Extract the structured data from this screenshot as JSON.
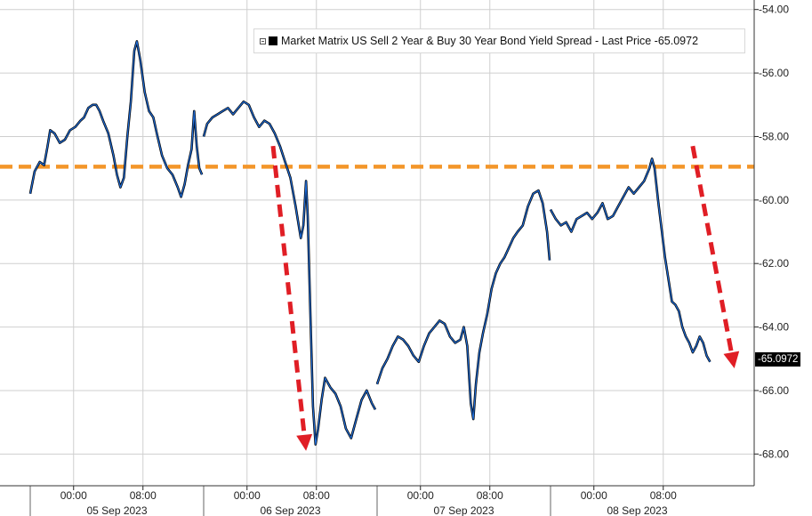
{
  "chart_data": {
    "type": "line",
    "legend": {
      "label": "Market Matrix US Sell 2 Year & Buy 30 Year Bond Yield Spread - Last Price -65.0972",
      "placement": "top-right"
    },
    "last_price_label": "-65.0972",
    "y_axis": {
      "side": "right",
      "ylim": [
        -69,
        -53.5
      ],
      "tick_values": [
        -54,
        -56,
        -58,
        -60,
        -62,
        -64,
        -66,
        -68
      ],
      "tick_labels": [
        "-54.00",
        "-56.00",
        "-58.00",
        "-60.00",
        "-62.00",
        "-64.00",
        "-66.00",
        "-68.00"
      ]
    },
    "x_axis": {
      "xlim": [
        0,
        43.6
      ],
      "hour_ticks": [
        {
          "x": 2.5,
          "label": "00:00"
        },
        {
          "x": 6.5,
          "label": "08:00"
        },
        {
          "x": 12.5,
          "label": "00:00"
        },
        {
          "x": 16.5,
          "label": "08:00"
        },
        {
          "x": 22.5,
          "label": "00:00"
        },
        {
          "x": 26.5,
          "label": "08:00"
        },
        {
          "x": 32.5,
          "label": "00:00"
        },
        {
          "x": 36.5,
          "label": "08:00"
        }
      ],
      "day_separators": [
        0,
        10,
        20,
        30
      ],
      "day_labels": [
        {
          "x": 5,
          "label": "05 Sep 2023"
        },
        {
          "x": 15,
          "label": "06 Sep 2023"
        },
        {
          "x": 25,
          "label": "07 Sep 2023"
        },
        {
          "x": 35,
          "label": "08 Sep 2023"
        }
      ]
    },
    "grid": true,
    "reference_line": {
      "y": -58.95,
      "color": "#f3962a",
      "style": "dashed"
    },
    "arrows": [
      {
        "from": [
          14.0,
          -58.3
        ],
        "to": [
          15.9,
          -67.9
        ],
        "color": "#e01e25"
      },
      {
        "from": [
          38.2,
          -58.3
        ],
        "to": [
          40.6,
          -65.3
        ],
        "color": "#e01e25"
      }
    ],
    "series": [
      {
        "color": "#1e6bd6",
        "segments": [
          [
            [
              0.0,
              -59.8
            ],
            [
              0.25,
              -59.1
            ],
            [
              0.55,
              -58.8
            ],
            [
              0.8,
              -58.9
            ],
            [
              1.0,
              -58.3
            ],
            [
              1.15,
              -57.8
            ],
            [
              1.4,
              -57.9
            ],
            [
              1.7,
              -58.2
            ],
            [
              2.0,
              -58.1
            ],
            [
              2.3,
              -57.8
            ],
            [
              2.6,
              -57.7
            ],
            [
              2.9,
              -57.5
            ],
            [
              3.1,
              -57.4
            ],
            [
              3.35,
              -57.1
            ],
            [
              3.6,
              -57.0
            ],
            [
              3.8,
              -57.0
            ],
            [
              4.0,
              -57.2
            ],
            [
              4.2,
              -57.5
            ],
            [
              4.5,
              -57.9
            ],
            [
              4.8,
              -58.6
            ],
            [
              5.0,
              -59.2
            ],
            [
              5.2,
              -59.6
            ],
            [
              5.4,
              -59.3
            ],
            [
              5.6,
              -58.0
            ],
            [
              5.8,
              -56.9
            ],
            [
              6.0,
              -55.3
            ],
            [
              6.15,
              -55.0
            ],
            [
              6.35,
              -55.6
            ],
            [
              6.6,
              -56.6
            ],
            [
              6.85,
              -57.2
            ],
            [
              7.1,
              -57.4
            ],
            [
              7.3,
              -57.9
            ],
            [
              7.6,
              -58.6
            ],
            [
              7.9,
              -59.0
            ],
            [
              8.2,
              -59.2
            ],
            [
              8.5,
              -59.6
            ],
            [
              8.7,
              -59.9
            ],
            [
              8.9,
              -59.5
            ],
            [
              9.1,
              -58.9
            ],
            [
              9.3,
              -58.4
            ],
            [
              9.45,
              -57.2
            ],
            [
              9.6,
              -58.3
            ],
            [
              9.75,
              -59.0
            ],
            [
              9.9,
              -59.2
            ]
          ],
          [
            [
              10.0,
              -58.0
            ],
            [
              10.2,
              -57.6
            ],
            [
              10.5,
              -57.4
            ],
            [
              10.8,
              -57.3
            ],
            [
              11.1,
              -57.2
            ],
            [
              11.4,
              -57.1
            ],
            [
              11.7,
              -57.3
            ],
            [
              12.0,
              -57.1
            ],
            [
              12.3,
              -56.9
            ],
            [
              12.6,
              -57.0
            ],
            [
              12.9,
              -57.4
            ],
            [
              13.2,
              -57.7
            ],
            [
              13.5,
              -57.5
            ],
            [
              13.8,
              -57.6
            ],
            [
              14.1,
              -57.9
            ],
            [
              14.4,
              -58.3
            ],
            [
              14.7,
              -58.8
            ],
            [
              15.0,
              -59.3
            ],
            [
              15.3,
              -60.2
            ],
            [
              15.6,
              -61.2
            ],
            [
              15.75,
              -60.8
            ],
            [
              15.9,
              -59.4
            ],
            [
              16.0,
              -60.5
            ],
            [
              16.15,
              -63.5
            ],
            [
              16.3,
              -66.5
            ],
            [
              16.45,
              -67.7
            ],
            [
              16.6,
              -67.2
            ],
            [
              16.8,
              -66.3
            ],
            [
              17.0,
              -65.6
            ],
            [
              17.3,
              -65.9
            ],
            [
              17.6,
              -66.1
            ],
            [
              17.9,
              -66.5
            ],
            [
              18.2,
              -67.2
            ],
            [
              18.5,
              -67.5
            ],
            [
              18.8,
              -66.9
            ],
            [
              19.1,
              -66.3
            ],
            [
              19.4,
              -66.0
            ],
            [
              19.7,
              -66.4
            ],
            [
              19.9,
              -66.6
            ]
          ],
          [
            [
              20.0,
              -65.8
            ],
            [
              20.3,
              -65.3
            ],
            [
              20.6,
              -65.0
            ],
            [
              20.9,
              -64.6
            ],
            [
              21.2,
              -64.3
            ],
            [
              21.5,
              -64.4
            ],
            [
              21.8,
              -64.6
            ],
            [
              22.1,
              -64.9
            ],
            [
              22.4,
              -65.1
            ],
            [
              22.7,
              -64.6
            ],
            [
              23.0,
              -64.2
            ],
            [
              23.3,
              -64.0
            ],
            [
              23.6,
              -63.8
            ],
            [
              23.9,
              -63.9
            ],
            [
              24.2,
              -64.3
            ],
            [
              24.5,
              -64.5
            ],
            [
              24.8,
              -64.4
            ],
            [
              25.0,
              -64.0
            ],
            [
              25.2,
              -64.6
            ],
            [
              25.4,
              -66.4
            ],
            [
              25.55,
              -66.9
            ],
            [
              25.7,
              -65.8
            ],
            [
              25.9,
              -64.8
            ],
            [
              26.1,
              -64.2
            ],
            [
              26.35,
              -63.6
            ],
            [
              26.6,
              -62.8
            ],
            [
              26.85,
              -62.3
            ],
            [
              27.1,
              -62.0
            ],
            [
              27.35,
              -61.8
            ],
            [
              27.6,
              -61.5
            ],
            [
              27.85,
              -61.2
            ],
            [
              28.1,
              -61.0
            ],
            [
              28.4,
              -60.8
            ],
            [
              28.7,
              -60.2
            ],
            [
              29.0,
              -59.8
            ],
            [
              29.3,
              -59.7
            ],
            [
              29.55,
              -60.1
            ],
            [
              29.8,
              -61.0
            ],
            [
              29.95,
              -61.9
            ]
          ],
          [
            [
              30.0,
              -60.3
            ],
            [
              30.3,
              -60.6
            ],
            [
              30.6,
              -60.8
            ],
            [
              30.9,
              -60.7
            ],
            [
              31.2,
              -61.0
            ],
            [
              31.5,
              -60.6
            ],
            [
              31.8,
              -60.5
            ],
            [
              32.1,
              -60.4
            ],
            [
              32.4,
              -60.6
            ],
            [
              32.7,
              -60.4
            ],
            [
              33.0,
              -60.1
            ],
            [
              33.3,
              -60.6
            ],
            [
              33.6,
              -60.5
            ],
            [
              33.9,
              -60.2
            ],
            [
              34.2,
              -59.9
            ],
            [
              34.5,
              -59.6
            ],
            [
              34.8,
              -59.8
            ],
            [
              35.1,
              -59.6
            ],
            [
              35.4,
              -59.4
            ],
            [
              35.7,
              -59.0
            ],
            [
              35.85,
              -58.7
            ],
            [
              36.0,
              -59.0
            ],
            [
              36.2,
              -60.0
            ],
            [
              36.4,
              -60.9
            ],
            [
              36.6,
              -61.8
            ],
            [
              36.8,
              -62.5
            ],
            [
              37.0,
              -63.2
            ],
            [
              37.2,
              -63.3
            ],
            [
              37.4,
              -63.5
            ],
            [
              37.6,
              -64.0
            ],
            [
              37.8,
              -64.3
            ],
            [
              38.0,
              -64.5
            ],
            [
              38.2,
              -64.8
            ],
            [
              38.4,
              -64.6
            ],
            [
              38.6,
              -64.3
            ],
            [
              38.8,
              -64.5
            ],
            [
              39.0,
              -64.9
            ],
            [
              39.2,
              -65.1
            ]
          ]
        ]
      }
    ]
  }
}
